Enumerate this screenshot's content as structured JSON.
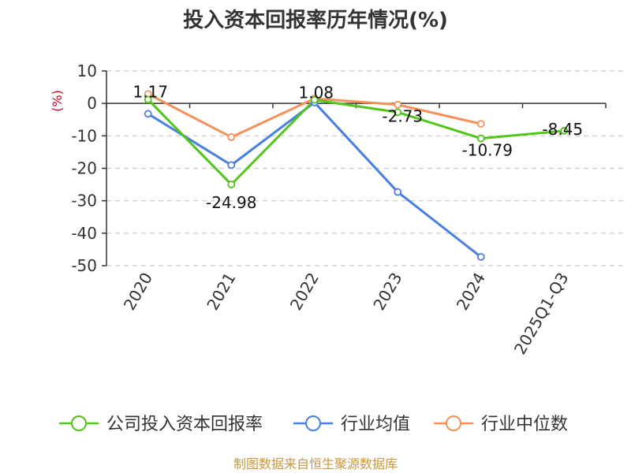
{
  "chart_data": {
    "type": "line",
    "title": "投入资本回报率历年情况(%)",
    "ylabel": "(%)",
    "xlabel": "",
    "categories": [
      "2020",
      "2021",
      "2022",
      "2023",
      "2024",
      "2025Q1-Q3"
    ],
    "ylim": [
      -50,
      10
    ],
    "yticks": [
      10,
      0,
      -10,
      -20,
      -30,
      -40,
      -50
    ],
    "grid": true,
    "legend_position": "bottom",
    "series": [
      {
        "name": "公司投入资本回报率",
        "color": "#52c41a",
        "values": [
          1.17,
          -24.98,
          1.08,
          -2.73,
          -10.79,
          -8.45
        ],
        "labels": [
          "1.17",
          "-24.98",
          "1.08",
          "-2.73",
          "-10.79",
          "-8.45"
        ]
      },
      {
        "name": "行业均值",
        "color": "#4a7fe0",
        "values": [
          -3.2,
          -19.0,
          0.3,
          -27.3,
          -47.3,
          null
        ]
      },
      {
        "name": "行业中位数",
        "color": "#f5905a",
        "values": [
          2.9,
          -10.4,
          1.5,
          -0.4,
          -6.3,
          null
        ]
      }
    ]
  },
  "footer": {
    "source": "制图数据来自恒生聚源数据库"
  }
}
